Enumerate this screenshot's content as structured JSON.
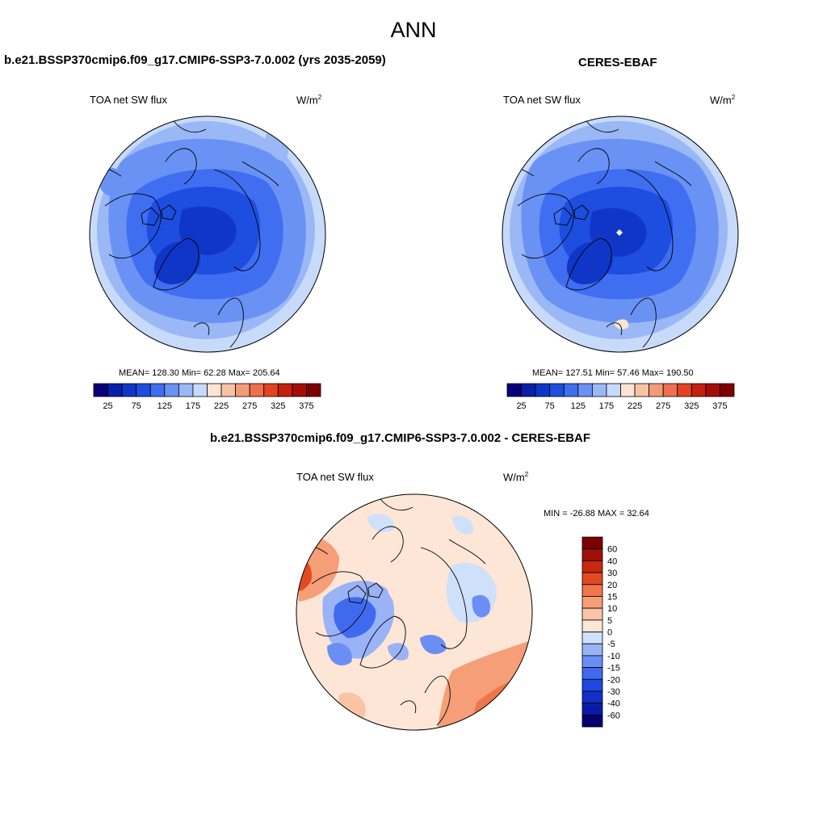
{
  "main_title": "ANN",
  "colors": {
    "abs_scale": [
      "#08007a",
      "#0a1fa8",
      "#1036c8",
      "#1e4ee0",
      "#3f6ef0",
      "#6a92f4",
      "#9ab8f6",
      "#c7dafa",
      "#fde3d3",
      "#f8c2a5",
      "#f49b7a",
      "#ef6f4e",
      "#e34420",
      "#c52010",
      "#a30e08",
      "#7e0000"
    ],
    "diff_scale": [
      "#08006e",
      "#0a1ca6",
      "#1030c8",
      "#1e48e0",
      "#3f6af0",
      "#6a8ef4",
      "#9ab2f6",
      "#cfe0fb",
      "#fde6d6",
      "#f9c4a6",
      "#f59e78",
      "#f07548",
      "#e44a20",
      "#c62810",
      "#9e1008",
      "#7a0000"
    ]
  },
  "panels": [
    {
      "title": "b.e21.BSSP370cmip6.f09_g17.CMIP6-SSP3-7.0.002 (yrs 2035-2059)",
      "variable": "TOA net SW flux",
      "units": "W/m",
      "units_sup": "2",
      "stats": "MEAN= 128.30  Min=  62.28  Max= 205.64",
      "colorbar_ticks": [
        "25",
        "75",
        "125",
        "175",
        "225",
        "275",
        "325",
        "375"
      ]
    },
    {
      "title": "CERES-EBAF",
      "variable": "TOA net SW flux",
      "units": "W/m",
      "units_sup": "2",
      "stats": "MEAN= 127.51  Min=  57.46  Max= 190.50",
      "colorbar_ticks": [
        "25",
        "75",
        "125",
        "175",
        "225",
        "275",
        "325",
        "375"
      ]
    },
    {
      "title": "b.e21.BSSP370cmip6.f09_g17.CMIP6-SSP3-7.0.002 - CERES-EBAF",
      "variable": "TOA net SW flux",
      "units": "W/m",
      "units_sup": "2",
      "stats": "MIN = -26.88 MAX =  32.64",
      "colorbar_ticks": [
        "60",
        "40",
        "30",
        "20",
        "15",
        "10",
        "5",
        "0",
        "-5",
        "-10",
        "-15",
        "-20",
        "-30",
        "-40",
        "-60"
      ]
    }
  ]
}
